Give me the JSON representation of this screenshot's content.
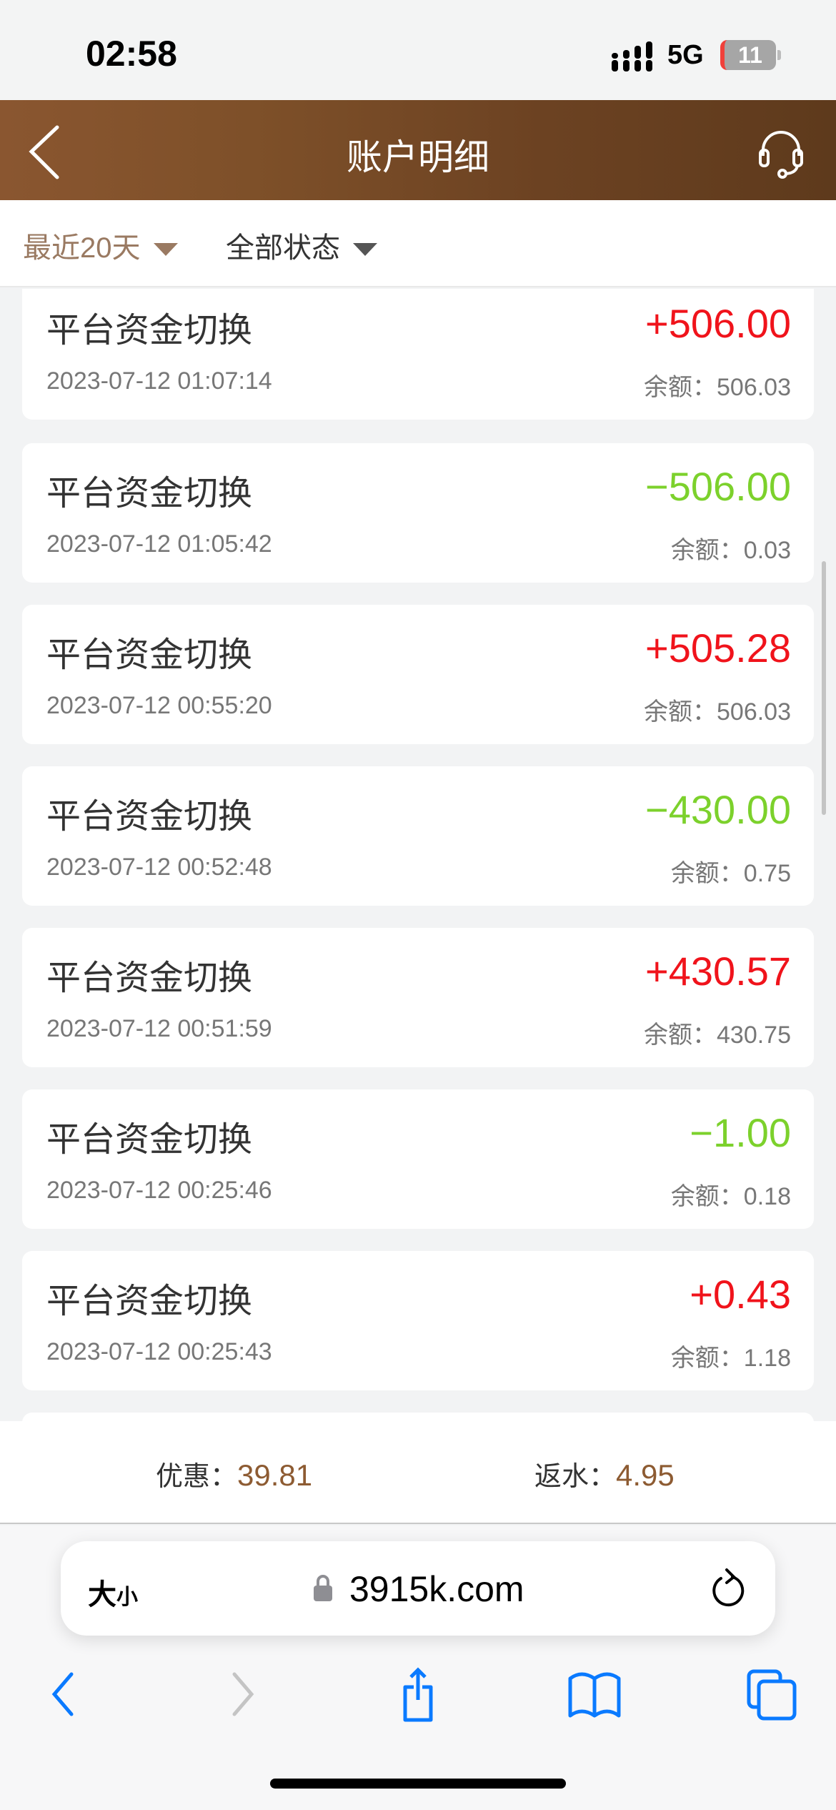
{
  "status_bar": {
    "time": "02:58",
    "network": "5G",
    "battery": "11"
  },
  "header": {
    "title": "账户明细"
  },
  "filters": {
    "range": "最近20天",
    "status": "全部状态"
  },
  "transactions": [
    {
      "title": "平台资金切换",
      "date": "2023-07-12 01:07:14",
      "amount": "+506.00",
      "balance": "余额：506.03",
      "type": "pos"
    },
    {
      "title": "平台资金切换",
      "date": "2023-07-12 01:05:42",
      "amount": "−506.00",
      "balance": "余额：0.03",
      "type": "neg"
    },
    {
      "title": "平台资金切换",
      "date": "2023-07-12 00:55:20",
      "amount": "+505.28",
      "balance": "余额：506.03",
      "type": "pos"
    },
    {
      "title": "平台资金切换",
      "date": "2023-07-12 00:52:48",
      "amount": "−430.00",
      "balance": "余额：0.75",
      "type": "neg"
    },
    {
      "title": "平台资金切换",
      "date": "2023-07-12 00:51:59",
      "amount": "+430.57",
      "balance": "余额：430.75",
      "type": "pos"
    },
    {
      "title": "平台资金切换",
      "date": "2023-07-12 00:25:46",
      "amount": "−1.00",
      "balance": "余额：0.18",
      "type": "neg"
    },
    {
      "title": "平台资金切换",
      "date": "2023-07-12 00:25:43",
      "amount": "+0.43",
      "balance": "余额：1.18",
      "type": "pos"
    }
  ],
  "summary": {
    "discount_label": "优惠：",
    "discount_value": "39.81",
    "rebate_label": "返水：",
    "rebate_value": "4.95"
  },
  "browser": {
    "text_size_big": "大",
    "text_size_small": "小",
    "domain": "3915k.com"
  },
  "colors": {
    "positive": "#f0131b",
    "negative": "#7cd12c",
    "accent": "#8d5b32",
    "ios_blue": "#0a7aff"
  }
}
